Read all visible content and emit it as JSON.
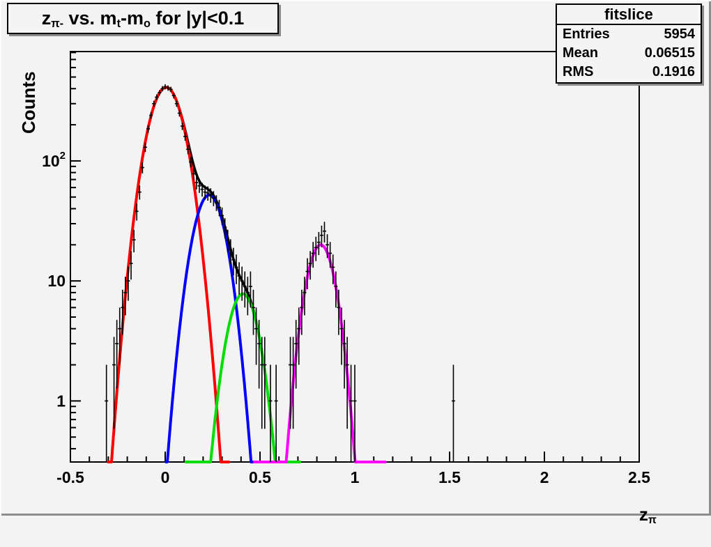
{
  "canvas": {
    "background_color": "#f3f3f3",
    "frame_color": "#000000",
    "bevel_highlight": "#fcfcfc",
    "bevel_shadow": "#8d8d8d"
  },
  "title": {
    "parts": [
      {
        "text": "z"
      },
      {
        "text": "π-",
        "sub": true
      },
      {
        "text": " vs. m"
      },
      {
        "text": "t",
        "sub": true
      },
      {
        "text": "-m"
      },
      {
        "text": "o",
        "sub": true
      },
      {
        "text": " for |y|<0.1"
      }
    ]
  },
  "stats_box": {
    "header": "fitslice",
    "rows": [
      {
        "label": "Entries",
        "value": "5954"
      },
      {
        "label": "Mean",
        "value": "0.06515"
      },
      {
        "label": "RMS",
        "value": "0.1916"
      }
    ]
  },
  "chart_data": {
    "type": "scatter",
    "subtype": "1D histogram with error bars and multi-gaussian fit (ROOT style, log y)",
    "x_axis": {
      "title_parts": [
        {
          "text": "z"
        },
        {
          "text": "π",
          "sub": true
        }
      ],
      "min": -0.5,
      "max": 2.5,
      "major_ticks": [
        -0.5,
        0,
        0.5,
        1,
        1.5,
        2,
        2.5
      ],
      "major_tick_labels": [
        "-0.5",
        "0",
        "0.5",
        "1",
        "1.5",
        "2",
        "2.5"
      ],
      "minor_tick_step": 0.1
    },
    "y_axis": {
      "title": "Counts",
      "scale": "log",
      "min": 0.31,
      "max": 815,
      "major_ticks": [
        1,
        10,
        100
      ],
      "major_tick_labels": [
        "1",
        "10",
        "10^2"
      ]
    },
    "grid": false,
    "legend": false,
    "bin_width": 0.015,
    "fits": [
      {
        "name": "total-fit",
        "color": "#000000",
        "type": "sum-of-gaussians",
        "range": [
          -0.3,
          0.58
        ],
        "line_width": 3.5
      },
      {
        "name": "gaussian-peak-1",
        "color": "#ff0000",
        "amplitude": 410,
        "mean": 0.005,
        "sigma": 0.076,
        "range": [
          -0.3,
          0.335
        ],
        "line_width": 4
      },
      {
        "name": "gaussian-peak-2",
        "color": "#0000ff",
        "amplitude": 52,
        "mean": 0.232,
        "sigma": 0.069,
        "range": [
          0.005,
          0.51
        ],
        "line_width": 4
      },
      {
        "name": "gaussian-peak-3",
        "color": "#00dd00",
        "amplitude": 7.8,
        "mean": 0.41,
        "sigma": 0.067,
        "range": [
          0.11,
          0.71
        ],
        "line_width": 4
      },
      {
        "name": "gaussian-peak-4",
        "color": "#ff00ff",
        "amplitude": 20,
        "mean": 0.82,
        "sigma": 0.063,
        "range": [
          0.47,
          1.16
        ],
        "line_width": 4
      }
    ],
    "points": [
      [
        -0.31,
        1
      ],
      [
        -0.27,
        2
      ],
      [
        -0.255,
        3
      ],
      [
        -0.24,
        4
      ],
      [
        -0.225,
        6
      ],
      [
        -0.21,
        8
      ],
      [
        -0.195,
        10
      ],
      [
        -0.18,
        14
      ],
      [
        -0.165,
        22
      ],
      [
        -0.15,
        38
      ],
      [
        -0.135,
        55
      ],
      [
        -0.12,
        88
      ],
      [
        -0.105,
        130
      ],
      [
        -0.09,
        185
      ],
      [
        -0.075,
        240
      ],
      [
        -0.06,
        300
      ],
      [
        -0.045,
        340
      ],
      [
        -0.03,
        370
      ],
      [
        -0.015,
        400
      ],
      [
        0.0,
        415
      ],
      [
        0.015,
        405
      ],
      [
        0.03,
        395
      ],
      [
        0.045,
        350
      ],
      [
        0.06,
        300
      ],
      [
        0.075,
        250
      ],
      [
        0.09,
        195
      ],
      [
        0.105,
        160
      ],
      [
        0.12,
        125
      ],
      [
        0.135,
        98
      ],
      [
        0.15,
        78
      ],
      [
        0.165,
        66
      ],
      [
        0.18,
        62
      ],
      [
        0.195,
        58
      ],
      [
        0.21,
        55
      ],
      [
        0.225,
        54
      ],
      [
        0.24,
        52
      ],
      [
        0.255,
        49
      ],
      [
        0.27,
        45
      ],
      [
        0.285,
        41
      ],
      [
        0.3,
        35
      ],
      [
        0.315,
        28
      ],
      [
        0.33,
        22
      ],
      [
        0.345,
        18
      ],
      [
        0.36,
        15
      ],
      [
        0.375,
        13
      ],
      [
        0.39,
        11
      ],
      [
        0.405,
        10
      ],
      [
        0.42,
        9
      ],
      [
        0.435,
        8
      ],
      [
        0.45,
        9
      ],
      [
        0.465,
        6
      ],
      [
        0.48,
        4
      ],
      [
        0.495,
        3
      ],
      [
        0.51,
        2
      ],
      [
        0.525,
        2
      ],
      [
        0.555,
        1
      ],
      [
        0.585,
        1
      ],
      [
        0.66,
        2
      ],
      [
        0.675,
        2
      ],
      [
        0.69,
        3
      ],
      [
        0.705,
        4
      ],
      [
        0.72,
        6
      ],
      [
        0.735,
        8
      ],
      [
        0.75,
        12
      ],
      [
        0.765,
        14
      ],
      [
        0.78,
        17
      ],
      [
        0.795,
        19
      ],
      [
        0.81,
        21
      ],
      [
        0.825,
        24
      ],
      [
        0.84,
        26
      ],
      [
        0.855,
        20
      ],
      [
        0.87,
        17
      ],
      [
        0.885,
        13
      ],
      [
        0.9,
        9
      ],
      [
        0.915,
        6
      ],
      [
        0.93,
        4
      ],
      [
        0.945,
        3
      ],
      [
        0.96,
        2
      ],
      [
        0.98,
        1
      ],
      [
        1.0,
        1
      ],
      [
        1.52,
        1
      ]
    ]
  }
}
